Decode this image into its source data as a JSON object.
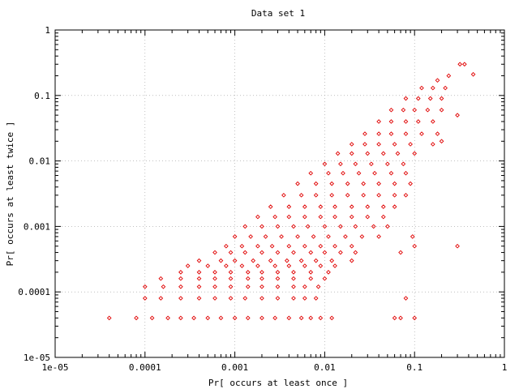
{
  "chart_data": {
    "type": "scatter",
    "title": "Data set 1",
    "xlabel": "Pr[ occurs at least once ]",
    "ylabel": "Pr[ occurs at least twice ]",
    "xscale": "log",
    "yscale": "log",
    "xlim": [
      1e-05,
      1
    ],
    "ylim": [
      1e-05,
      1
    ],
    "xticks": [
      {
        "value": 1e-05,
        "label": "1e-05"
      },
      {
        "value": 0.0001,
        "label": "0.0001"
      },
      {
        "value": 0.001,
        "label": "0.001"
      },
      {
        "value": 0.01,
        "label": "0.01"
      },
      {
        "value": 0.1,
        "label": "0.1"
      },
      {
        "value": 1,
        "label": "1"
      }
    ],
    "yticks": [
      {
        "value": 1e-05,
        "label": "1e-05"
      },
      {
        "value": 0.0001,
        "label": "0.0001"
      },
      {
        "value": 0.001,
        "label": "0.001"
      },
      {
        "value": 0.01,
        "label": "0.01"
      },
      {
        "value": 0.1,
        "label": "0.1"
      },
      {
        "value": 1,
        "label": "1"
      }
    ],
    "grid": true,
    "color": "#e00000",
    "marker": "diamond",
    "series": [
      {
        "name": "",
        "points": [
          [
            4e-05,
            4e-05
          ],
          [
            8e-05,
            4e-05
          ],
          [
            0.00012,
            4e-05
          ],
          [
            0.00018,
            4e-05
          ],
          [
            0.00025,
            4e-05
          ],
          [
            0.00035,
            4e-05
          ],
          [
            0.0005,
            4e-05
          ],
          [
            0.0007,
            4e-05
          ],
          [
            0.001,
            4e-05
          ],
          [
            0.0014,
            4e-05
          ],
          [
            0.002,
            4e-05
          ],
          [
            0.0028,
            4e-05
          ],
          [
            0.004,
            4e-05
          ],
          [
            0.0055,
            4e-05
          ],
          [
            0.007,
            4e-05
          ],
          [
            0.009,
            4e-05
          ],
          [
            0.012,
            4e-05
          ],
          [
            0.06,
            4e-05
          ],
          [
            0.07,
            4e-05
          ],
          [
            0.1,
            4e-05
          ],
          [
            0.0001,
            8e-05
          ],
          [
            0.00015,
            8e-05
          ],
          [
            0.00025,
            8e-05
          ],
          [
            0.0004,
            8e-05
          ],
          [
            0.0006,
            8e-05
          ],
          [
            0.0009,
            8e-05
          ],
          [
            0.0013,
            8e-05
          ],
          [
            0.002,
            8e-05
          ],
          [
            0.003,
            8e-05
          ],
          [
            0.0045,
            8e-05
          ],
          [
            0.006,
            8e-05
          ],
          [
            0.008,
            8e-05
          ],
          [
            0.08,
            8e-05
          ],
          [
            0.0001,
            0.00012
          ],
          [
            0.00016,
            0.00012
          ],
          [
            0.00025,
            0.00012
          ],
          [
            0.0004,
            0.00012
          ],
          [
            0.0006,
            0.00012
          ],
          [
            0.0009,
            0.00012
          ],
          [
            0.0014,
            0.00012
          ],
          [
            0.002,
            0.00012
          ],
          [
            0.003,
            0.00012
          ],
          [
            0.0045,
            0.00012
          ],
          [
            0.006,
            0.00012
          ],
          [
            0.0085,
            0.00012
          ],
          [
            0.00015,
            0.00016
          ],
          [
            0.00025,
            0.00016
          ],
          [
            0.0004,
            0.00016
          ],
          [
            0.0006,
            0.00016
          ],
          [
            0.0009,
            0.00016
          ],
          [
            0.0014,
            0.00016
          ],
          [
            0.002,
            0.00016
          ],
          [
            0.003,
            0.00016
          ],
          [
            0.0045,
            0.00016
          ],
          [
            0.007,
            0.00016
          ],
          [
            0.01,
            0.00016
          ],
          [
            0.00025,
            0.0002
          ],
          [
            0.0004,
            0.0002
          ],
          [
            0.0006,
            0.0002
          ],
          [
            0.0009,
            0.0002
          ],
          [
            0.0014,
            0.0002
          ],
          [
            0.002,
            0.0002
          ],
          [
            0.003,
            0.0002
          ],
          [
            0.0045,
            0.0002
          ],
          [
            0.007,
            0.0002
          ],
          [
            0.011,
            0.0002
          ],
          [
            0.0003,
            0.00025
          ],
          [
            0.0005,
            0.00025
          ],
          [
            0.0008,
            0.00025
          ],
          [
            0.0012,
            0.00025
          ],
          [
            0.0018,
            0.00025
          ],
          [
            0.0028,
            0.00025
          ],
          [
            0.004,
            0.00025
          ],
          [
            0.006,
            0.00025
          ],
          [
            0.009,
            0.00025
          ],
          [
            0.013,
            0.00025
          ],
          [
            0.0004,
            0.0003
          ],
          [
            0.0007,
            0.0003
          ],
          [
            0.001,
            0.0003
          ],
          [
            0.0016,
            0.0003
          ],
          [
            0.0025,
            0.0003
          ],
          [
            0.0038,
            0.0003
          ],
          [
            0.0055,
            0.0003
          ],
          [
            0.008,
            0.0003
          ],
          [
            0.012,
            0.0003
          ],
          [
            0.02,
            0.0003
          ],
          [
            0.0006,
            0.0004
          ],
          [
            0.0009,
            0.0004
          ],
          [
            0.0013,
            0.0004
          ],
          [
            0.002,
            0.0004
          ],
          [
            0.003,
            0.0004
          ],
          [
            0.0045,
            0.0004
          ],
          [
            0.007,
            0.0004
          ],
          [
            0.01,
            0.0004
          ],
          [
            0.015,
            0.0004
          ],
          [
            0.022,
            0.0004
          ],
          [
            0.07,
            0.0004
          ],
          [
            0.0008,
            0.0005
          ],
          [
            0.0012,
            0.0005
          ],
          [
            0.0018,
            0.0005
          ],
          [
            0.0026,
            0.0005
          ],
          [
            0.004,
            0.0005
          ],
          [
            0.006,
            0.0005
          ],
          [
            0.009,
            0.0005
          ],
          [
            0.013,
            0.0005
          ],
          [
            0.02,
            0.0005
          ],
          [
            0.1,
            0.0005
          ],
          [
            0.3,
            0.0005
          ],
          [
            0.001,
            0.0007
          ],
          [
            0.0015,
            0.0007
          ],
          [
            0.0022,
            0.0007
          ],
          [
            0.0033,
            0.0007
          ],
          [
            0.005,
            0.0007
          ],
          [
            0.0075,
            0.0007
          ],
          [
            0.011,
            0.0007
          ],
          [
            0.017,
            0.0007
          ],
          [
            0.026,
            0.0007
          ],
          [
            0.04,
            0.0007
          ],
          [
            0.095,
            0.0007
          ],
          [
            0.0013,
            0.001
          ],
          [
            0.002,
            0.001
          ],
          [
            0.003,
            0.001
          ],
          [
            0.0045,
            0.001
          ],
          [
            0.0065,
            0.001
          ],
          [
            0.01,
            0.001
          ],
          [
            0.015,
            0.001
          ],
          [
            0.022,
            0.001
          ],
          [
            0.035,
            0.001
          ],
          [
            0.05,
            0.001
          ],
          [
            0.0018,
            0.0014
          ],
          [
            0.0028,
            0.0014
          ],
          [
            0.004,
            0.0014
          ],
          [
            0.006,
            0.0014
          ],
          [
            0.009,
            0.0014
          ],
          [
            0.013,
            0.0014
          ],
          [
            0.02,
            0.0014
          ],
          [
            0.03,
            0.0014
          ],
          [
            0.045,
            0.0014
          ],
          [
            0.0025,
            0.002
          ],
          [
            0.004,
            0.002
          ],
          [
            0.006,
            0.002
          ],
          [
            0.009,
            0.002
          ],
          [
            0.013,
            0.002
          ],
          [
            0.02,
            0.002
          ],
          [
            0.03,
            0.002
          ],
          [
            0.045,
            0.002
          ],
          [
            0.06,
            0.002
          ],
          [
            0.0035,
            0.003
          ],
          [
            0.0055,
            0.003
          ],
          [
            0.008,
            0.003
          ],
          [
            0.012,
            0.003
          ],
          [
            0.018,
            0.003
          ],
          [
            0.027,
            0.003
          ],
          [
            0.04,
            0.003
          ],
          [
            0.06,
            0.003
          ],
          [
            0.08,
            0.003
          ],
          [
            0.005,
            0.0045
          ],
          [
            0.008,
            0.0045
          ],
          [
            0.012,
            0.0045
          ],
          [
            0.018,
            0.0045
          ],
          [
            0.027,
            0.0045
          ],
          [
            0.04,
            0.0045
          ],
          [
            0.06,
            0.0045
          ],
          [
            0.09,
            0.0045
          ],
          [
            0.007,
            0.0065
          ],
          [
            0.011,
            0.0065
          ],
          [
            0.016,
            0.0065
          ],
          [
            0.024,
            0.0065
          ],
          [
            0.036,
            0.0065
          ],
          [
            0.055,
            0.0065
          ],
          [
            0.08,
            0.0065
          ],
          [
            0.01,
            0.009
          ],
          [
            0.015,
            0.009
          ],
          [
            0.022,
            0.009
          ],
          [
            0.033,
            0.009
          ],
          [
            0.05,
            0.009
          ],
          [
            0.075,
            0.009
          ],
          [
            0.014,
            0.013
          ],
          [
            0.02,
            0.013
          ],
          [
            0.03,
            0.013
          ],
          [
            0.045,
            0.013
          ],
          [
            0.065,
            0.013
          ],
          [
            0.1,
            0.013
          ],
          [
            0.02,
            0.018
          ],
          [
            0.028,
            0.018
          ],
          [
            0.04,
            0.018
          ],
          [
            0.06,
            0.018
          ],
          [
            0.09,
            0.018
          ],
          [
            0.16,
            0.018
          ],
          [
            0.028,
            0.026
          ],
          [
            0.04,
            0.026
          ],
          [
            0.055,
            0.026
          ],
          [
            0.08,
            0.026
          ],
          [
            0.12,
            0.026
          ],
          [
            0.18,
            0.026
          ],
          [
            0.04,
            0.04
          ],
          [
            0.055,
            0.04
          ],
          [
            0.08,
            0.04
          ],
          [
            0.11,
            0.04
          ],
          [
            0.16,
            0.04
          ],
          [
            0.055,
            0.06
          ],
          [
            0.075,
            0.06
          ],
          [
            0.1,
            0.06
          ],
          [
            0.14,
            0.06
          ],
          [
            0.2,
            0.06
          ],
          [
            0.08,
            0.09
          ],
          [
            0.11,
            0.09
          ],
          [
            0.15,
            0.09
          ],
          [
            0.2,
            0.09
          ],
          [
            0.12,
            0.13
          ],
          [
            0.16,
            0.13
          ],
          [
            0.22,
            0.13
          ],
          [
            0.18,
            0.17
          ],
          [
            0.24,
            0.2
          ],
          [
            0.32,
            0.3
          ],
          [
            0.36,
            0.3
          ],
          [
            0.45,
            0.21
          ],
          [
            0.3,
            0.05
          ],
          [
            0.2,
            0.02
          ]
        ]
      }
    ]
  }
}
